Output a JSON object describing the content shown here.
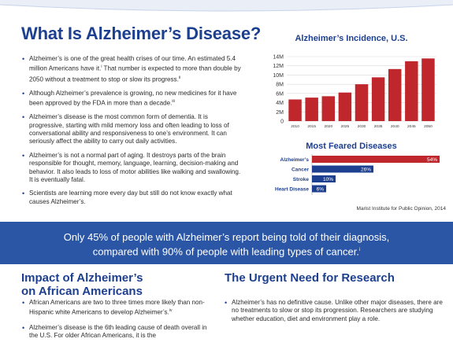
{
  "title": "What Is Alzheimer’s Disease?",
  "intro_bullets": [
    {
      "text": "Alzheimer’s is one of the great health crises of our time. An estimated 5.4 million Americans have it.",
      "sup1": "i",
      "text2": " That number is expected to more than double by 2050 without a treatment to stop or slow its progress.",
      "sup2": "ii"
    },
    {
      "text": "Although Alzheimer’s prevalence is growing, no new medicines for it have been approved by the FDA in more than a decade.",
      "sup1": "iii"
    },
    {
      "text": "Alzheimer’s disease is the most common form of dementia. It is progressive, starting with mild memory loss and often leading to loss of conversational ability and responsiveness to one’s environment. It can seriously affect the ability to carry out daily activities."
    },
    {
      "text": "Alzheimer’s is not a normal part of aging. It destroys parts of the brain responsible for thought, memory, language, learning, decision-making and behavior. It also leads to loss of motor abilities like walking and swallowing. It is eventually fatal."
    },
    {
      "text": "Scientists are learning more every day but still do not know exactly what causes Alzheimer’s."
    }
  ],
  "banner": {
    "line1": "Only 45% of people with Alzheimer’s report being told of their diagnosis,",
    "line2": "compared with 90% of people with leading types of cancer.",
    "sup": "i"
  },
  "section_african": {
    "heading_line1": "Impact of Alzheimer’s",
    "heading_line2": "on African Americans",
    "bullets": [
      {
        "text": "African Americans are two to three times more likely than non-Hispanic white Americans to develop Alzheimer’s.",
        "sup": "iv"
      },
      {
        "text": "Alzheimer’s disease is the 6th leading cause of death overall in the U.S. For older African Americans, it is the"
      }
    ]
  },
  "section_research": {
    "heading": "The Urgent Need for Research",
    "bullets": [
      {
        "text": "Alzheimer’s has no definitive cause. Unlike other major diseases, there are no treatments to slow or stop its progression. Researchers are studying whether education, diet and environment play a role."
      }
    ]
  },
  "colors": {
    "navy": "#1d3f8f",
    "bar_red": "#c0272d",
    "bar_blue": "#1d3f8f",
    "banner": "#2b56a6"
  },
  "chart_data": [
    {
      "type": "bar",
      "title": "Alzheimer’s Incidence, U.S.",
      "categories": [
        "2010",
        "2015",
        "2020",
        "2025",
        "2030",
        "2035",
        "2040",
        "2045",
        "2050"
      ],
      "values": [
        4.7,
        5.1,
        5.4,
        6.2,
        8.0,
        9.5,
        11.3,
        13.0,
        13.6
      ],
      "ytick_labels": [
        "0",
        "2M",
        "4M",
        "6M",
        "8M",
        "10M",
        "12M",
        "14M"
      ],
      "ylim": [
        0,
        14
      ],
      "grid": true,
      "xlabel": "",
      "ylabel": ""
    },
    {
      "type": "bar",
      "orientation": "horizontal",
      "title": "Most Feared Diseases",
      "categories": [
        "Alzheimer’s",
        "Cancer",
        "Stroke",
        "Heart Disease"
      ],
      "values": [
        54,
        26,
        10,
        6
      ],
      "value_labels": [
        "54%",
        "26%",
        "10%",
        "6%"
      ],
      "xlim": [
        0,
        54
      ],
      "source": "Marist Institute for Public Opinion, 2014"
    }
  ]
}
